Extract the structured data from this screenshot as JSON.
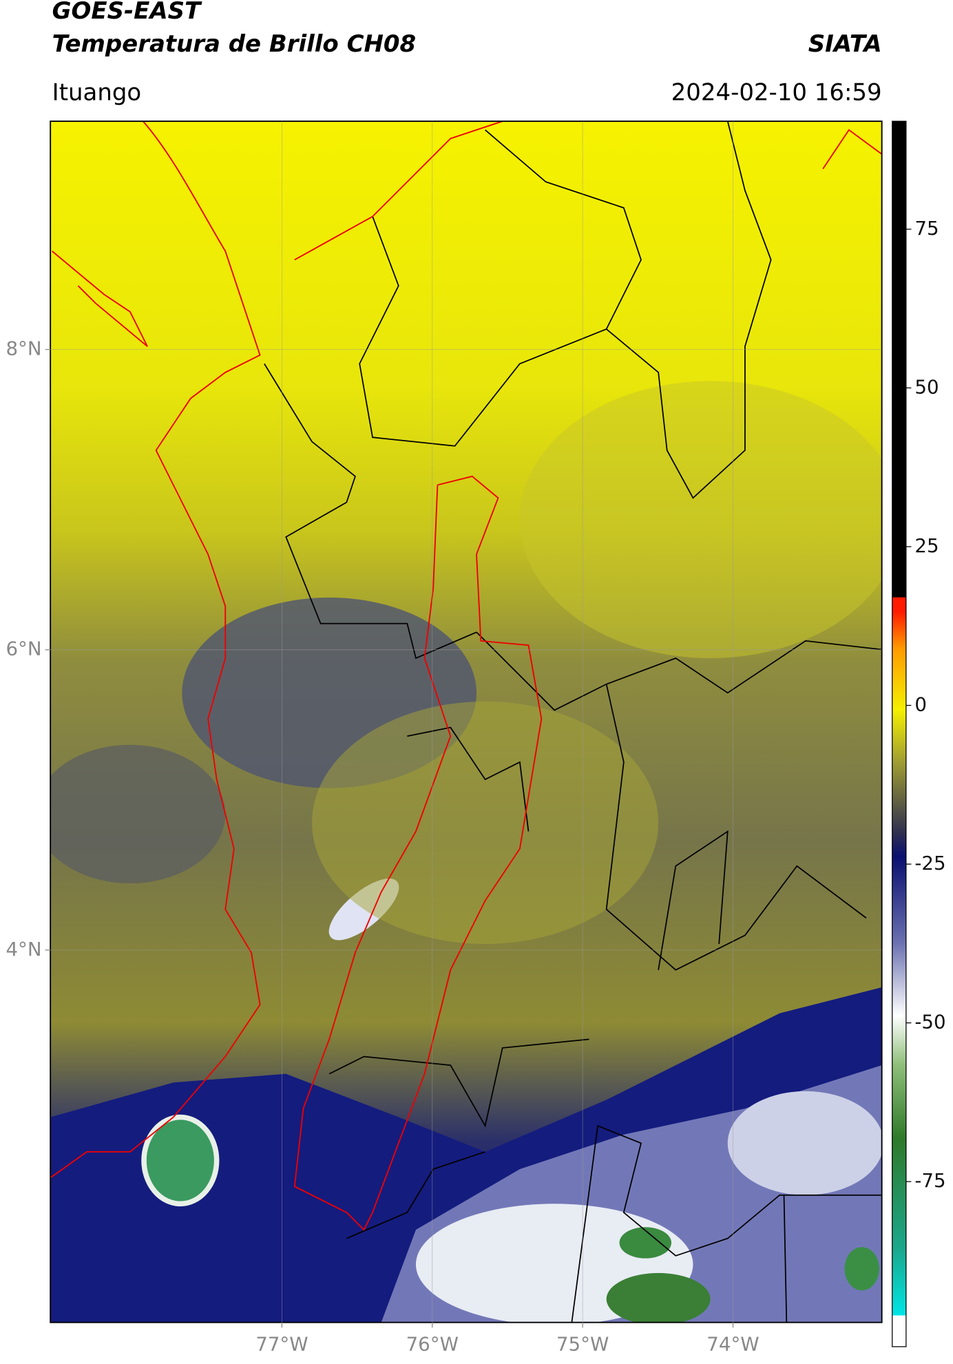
{
  "header": {
    "title": "GOES-EAST",
    "subtitle": "Temperatura de Brillo CH08",
    "brand": "SIATA",
    "location": "Ituango",
    "datetime": "2024-02-10 16:59"
  },
  "map": {
    "xlim": [
      -78.54,
      -73.01
    ],
    "ylim": [
      1.52,
      9.52
    ],
    "xticks": [
      {
        "value": -77,
        "label": "77°W"
      },
      {
        "value": -76,
        "label": "76°W"
      },
      {
        "value": -75,
        "label": "75°W"
      },
      {
        "value": -74,
        "label": "74°W"
      }
    ],
    "yticks": [
      {
        "value": 8,
        "label": "8°N"
      },
      {
        "value": 6,
        "label": "6°N"
      },
      {
        "value": 4,
        "label": "4°N"
      }
    ],
    "grid": true
  },
  "colorbar": {
    "lim": [
      -101,
      92
    ],
    "ticks": [
      75,
      50,
      25,
      0,
      -25,
      -50,
      -75
    ]
  }
}
